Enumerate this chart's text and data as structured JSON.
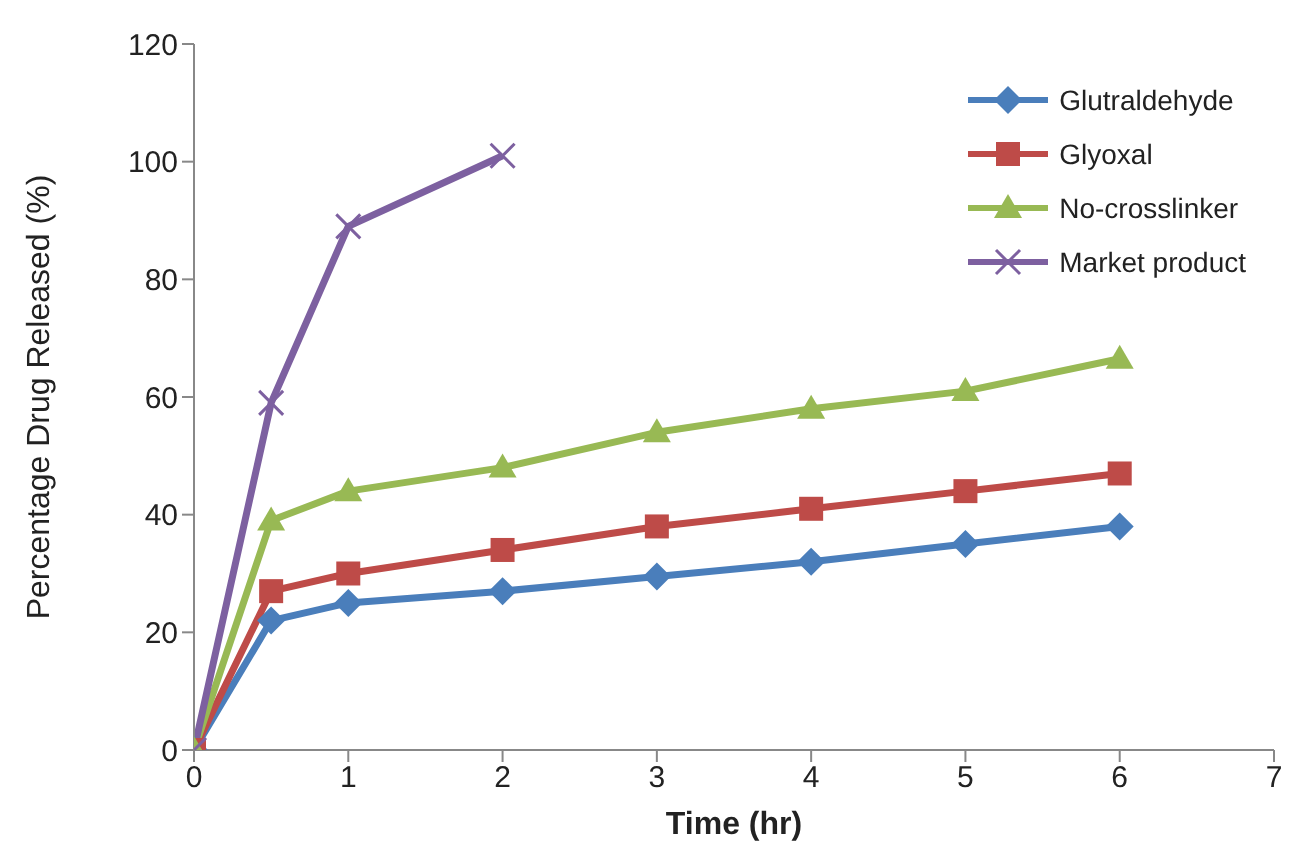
{
  "chart_data": {
    "type": "line",
    "xlabel": "Time (hr)",
    "ylabel": "Percentage Drug Released (%)",
    "xlim": [
      0,
      7
    ],
    "xticks": [
      0,
      1,
      2,
      3,
      4,
      5,
      6,
      7
    ],
    "ylim": [
      0,
      120
    ],
    "yticks": [
      0,
      20,
      40,
      60,
      80,
      100,
      120
    ],
    "grid": false,
    "legend": "top right",
    "series": [
      {
        "name": "Glutraldehyde",
        "color": "#4a7ebb",
        "marker": "diamond",
        "x": [
          0,
          0.5,
          1,
          2,
          3,
          4,
          5,
          6
        ],
        "values": [
          0,
          22,
          25,
          27,
          29.5,
          32,
          35,
          38
        ]
      },
      {
        "name": "Glyoxal",
        "color": "#be4b48",
        "marker": "square",
        "x": [
          0,
          0.5,
          1,
          2,
          3,
          4,
          5,
          6
        ],
        "values": [
          0,
          27,
          30,
          34,
          38,
          41,
          44,
          47
        ]
      },
      {
        "name": "No-crosslinker",
        "color": "#98b954",
        "marker": "triangle",
        "x": [
          0,
          0.5,
          1,
          2,
          3,
          4,
          5,
          6
        ],
        "values": [
          0,
          39,
          44,
          48,
          54,
          58,
          61,
          66.5
        ]
      },
      {
        "name": "Market product",
        "color": "#7d60a0",
        "marker": "cross",
        "x": [
          0,
          0.5,
          1,
          2
        ],
        "values": [
          0,
          59,
          89,
          101
        ]
      }
    ]
  }
}
